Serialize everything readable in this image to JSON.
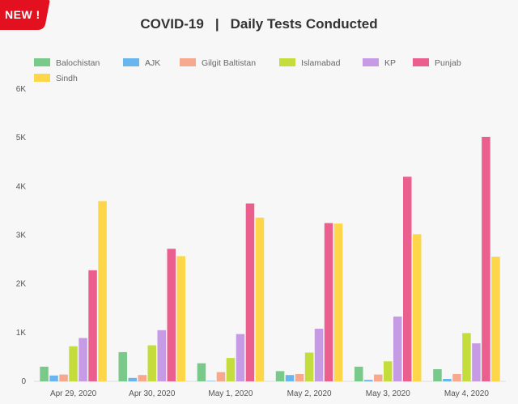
{
  "badge": {
    "label": "NEW !",
    "color": "#e3101f"
  },
  "chart_title": {
    "left": "COVID-19",
    "separator": "|",
    "right": "Daily Tests Conducted"
  },
  "chart_data": {
    "type": "bar",
    "categories": [
      "Apr 29, 2020",
      "Apr 30, 2020",
      "May 1, 2020",
      "May 2, 2020",
      "May 3, 2020",
      "May 4, 2020"
    ],
    "series": [
      {
        "name": "Balochistan",
        "color": "#78c98a",
        "values": [
          300,
          600,
          370,
          210,
          300,
          250
        ]
      },
      {
        "name": "AJK",
        "color": "#69b6ee",
        "values": [
          120,
          70,
          10,
          130,
          30,
          50
        ]
      },
      {
        "name": "Gilgit Baltistan",
        "color": "#f6a98f",
        "values": [
          140,
          130,
          190,
          150,
          140,
          150
        ]
      },
      {
        "name": "Islamabad",
        "color": "#c5dd3c",
        "values": [
          720,
          740,
          480,
          590,
          410,
          990
        ]
      },
      {
        "name": "KP",
        "color": "#c79ae6",
        "values": [
          890,
          1050,
          970,
          1080,
          1330,
          780
        ]
      },
      {
        "name": "Punjab",
        "color": "#ea5f8e",
        "values": [
          2280,
          2720,
          3650,
          3250,
          4200,
          5020
        ]
      },
      {
        "name": "Sindh",
        "color": "#fdd649",
        "values": [
          3700,
          2570,
          3360,
          3240,
          3020,
          2560
        ]
      }
    ],
    "y_ticks": [
      "0",
      "1K",
      "2K",
      "3K",
      "4K",
      "5K",
      "6K"
    ],
    "ylim": [
      0,
      6000
    ],
    "grid": false,
    "legend_position": "top-left"
  }
}
